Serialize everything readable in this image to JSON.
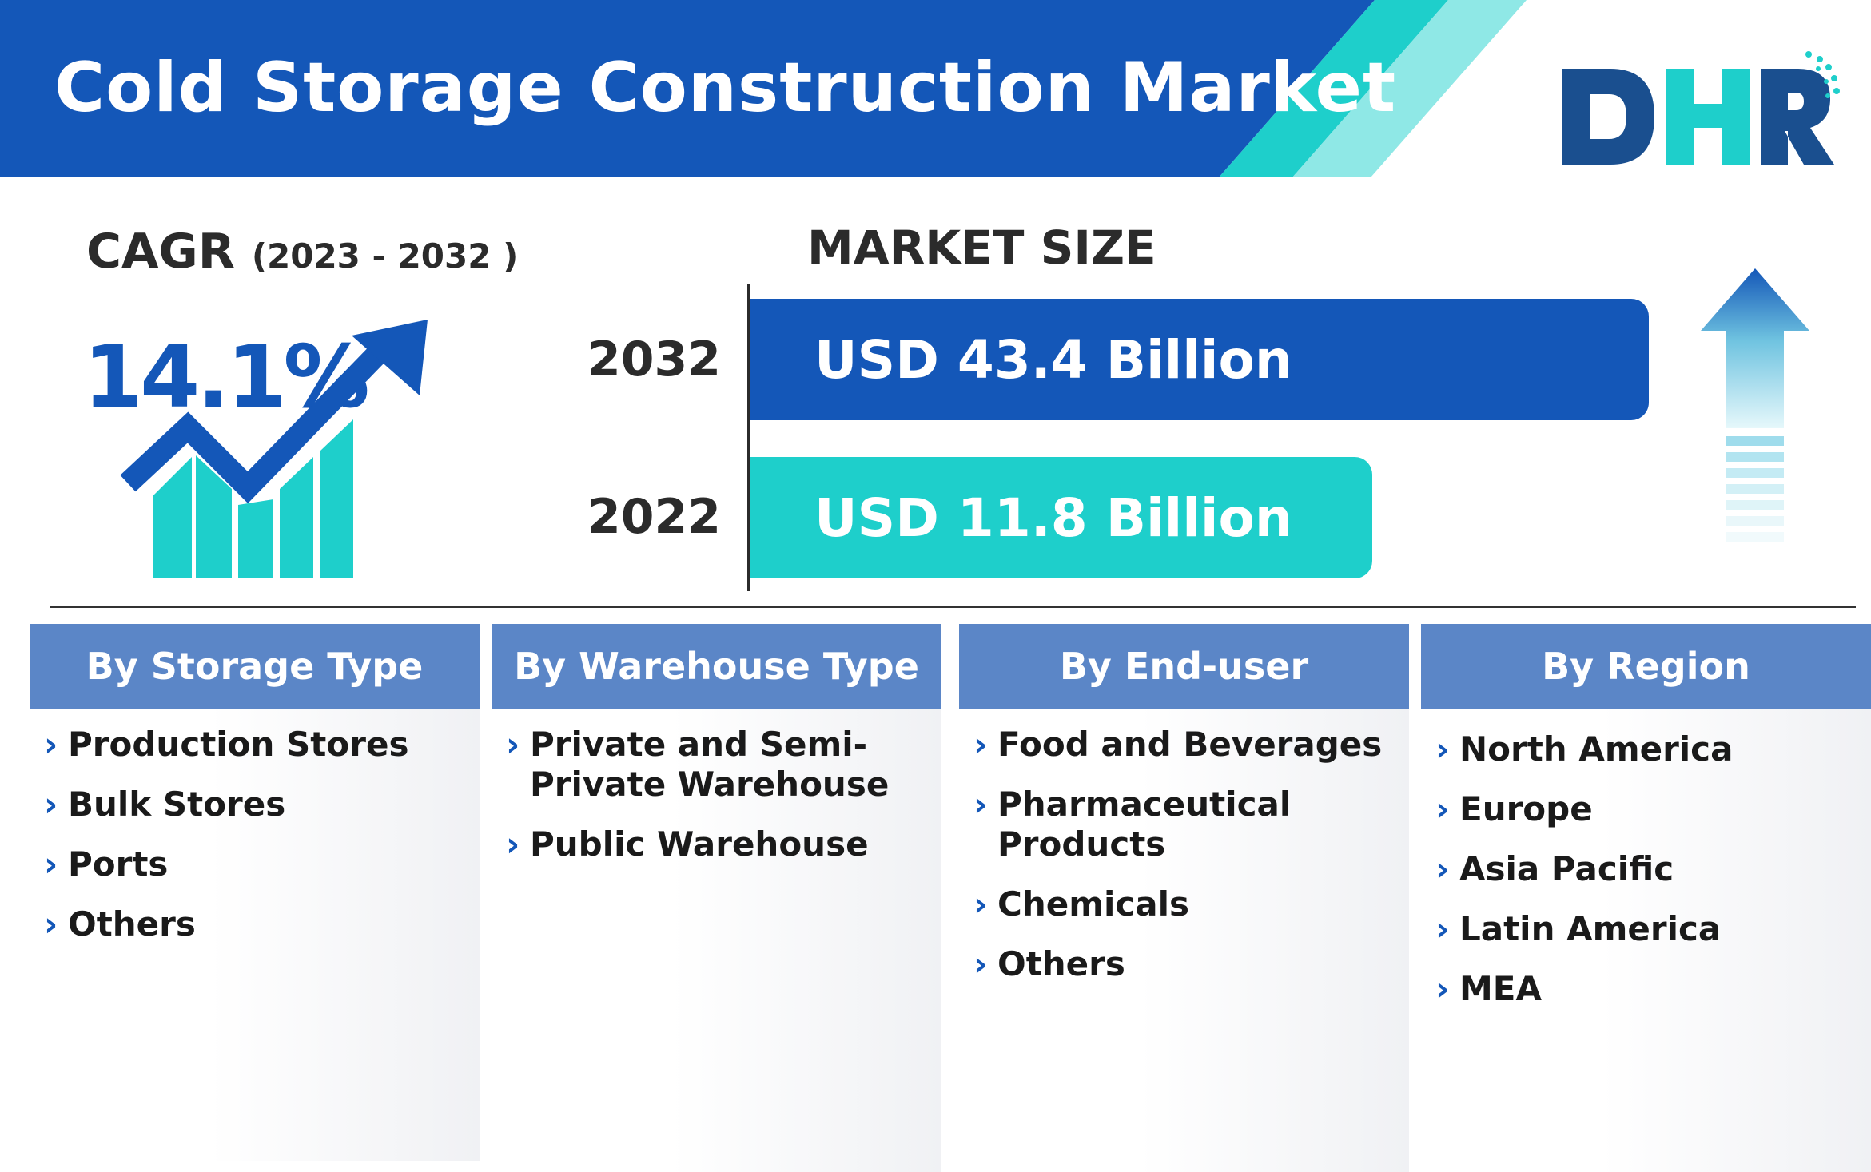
{
  "header": {
    "title": "Cold Storage Construction Market",
    "logo_text": "DHR",
    "colors": {
      "primary": "#1457b8",
      "accent": "#1ecfcb",
      "accent_light": "#8fe8e6"
    }
  },
  "cagr": {
    "label": "CAGR",
    "period": "(2023 - 2032 )",
    "value": "14.1%"
  },
  "market_size": {
    "label": "MARKET SIZE",
    "entries": [
      {
        "year": "2032",
        "value_text": "USD 43.4 Billion",
        "value": 43.4
      },
      {
        "year": "2022",
        "value_text": "USD 11.8 Billion",
        "value": 11.8
      }
    ]
  },
  "segments": [
    {
      "title": "By Storage Type",
      "items": [
        "Production Stores",
        "Bulk Stores",
        "Ports",
        "Others"
      ]
    },
    {
      "title": "By Warehouse Type",
      "items": [
        "Private and Semi-Private Warehouse",
        "Public Warehouse"
      ]
    },
    {
      "title": "By End-user",
      "items": [
        "Food and Beverages",
        "Pharmaceutical Products",
        "Chemicals",
        "Others"
      ]
    },
    {
      "title": "By Region",
      "items": [
        "North America",
        "Europe",
        "Asia Pacific",
        "Latin America",
        "MEA"
      ]
    }
  ],
  "icons": {
    "bullet": "chevron-right-icon",
    "growth": "growth-chart-icon",
    "arrow": "up-arrow-icon"
  }
}
